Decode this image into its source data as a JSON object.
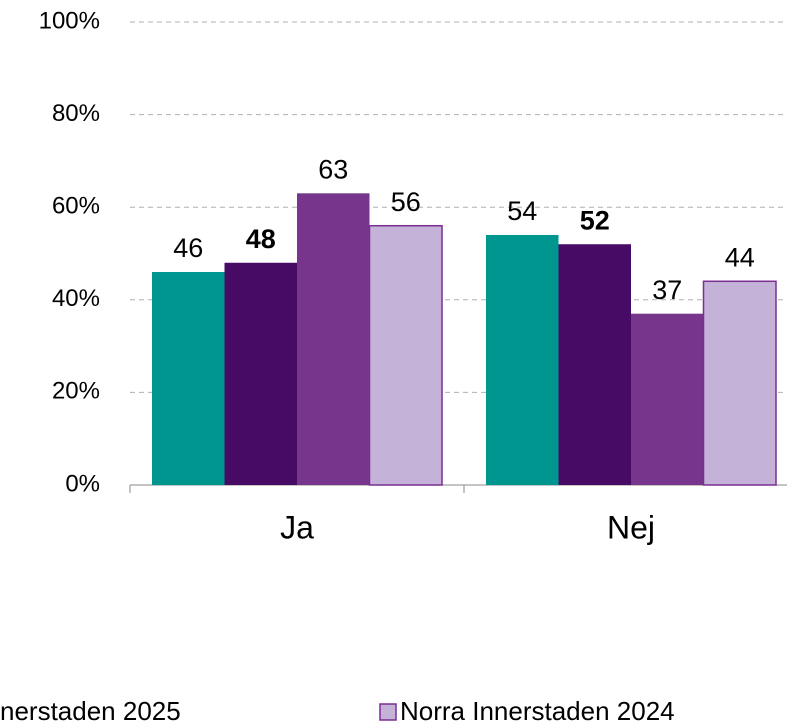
{
  "chart_data": {
    "type": "bar",
    "categories": [
      "Ja",
      "Nej"
    ],
    "series": [
      {
        "color": "#009690",
        "values": [
          46,
          54
        ]
      },
      {
        "name": "nerstaden 2025",
        "color": "#470a65",
        "values": [
          48,
          52
        ],
        "bold_labels": true
      },
      {
        "color": "#77358b",
        "values": [
          63,
          37
        ]
      },
      {
        "name": "Norra Innerstaden 2024",
        "color": "#c4b2d9",
        "edge_color": "#7a2e93",
        "values": [
          56,
          44
        ]
      }
    ],
    "ylim": [
      0,
      100
    ],
    "yticks": [
      {
        "value": 0,
        "label": "0%"
      },
      {
        "value": 20,
        "label": "20%"
      },
      {
        "value": 40,
        "label": "40%"
      },
      {
        "value": 60,
        "label": "60%"
      },
      {
        "value": 80,
        "label": "80%"
      },
      {
        "value": 100,
        "label": "100%"
      }
    ],
    "grid": true,
    "legend": "bottom"
  }
}
